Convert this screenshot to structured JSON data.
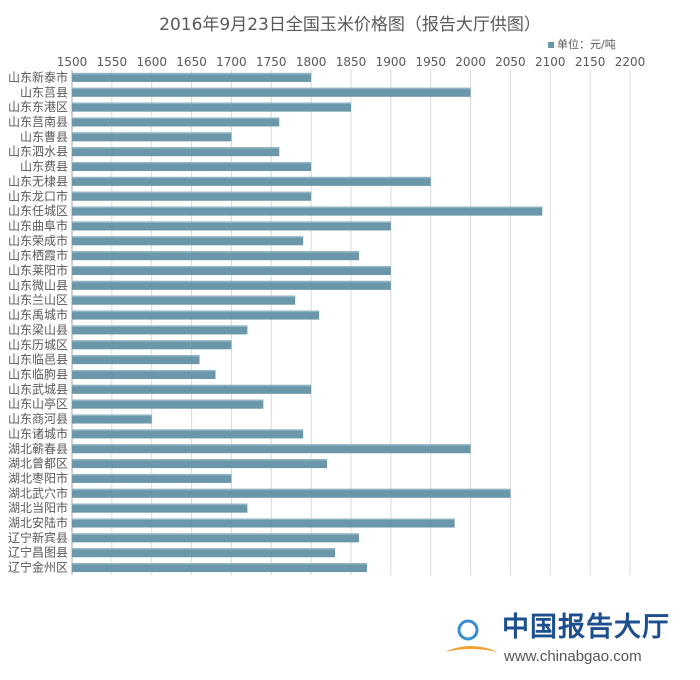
{
  "chart_data": {
    "type": "bar",
    "orientation": "horizontal",
    "title": "2016年9月23日全国玉米价格图（报告大厅供图）",
    "legend": {
      "label": "单位：元/吨",
      "position": "top-right"
    },
    "xlim": [
      1500,
      2200
    ],
    "xticks": [
      1500,
      1550,
      1600,
      1650,
      1700,
      1750,
      1800,
      1850,
      1900,
      1950,
      2000,
      2050,
      2100,
      2150,
      2200
    ],
    "xaxis_position": "top",
    "grid": true,
    "bar_color": "#6a97aa",
    "categories": [
      "山东新泰市",
      "山东莒县",
      "山东东港区",
      "山东莒南县",
      "山东曹县",
      "山东泗水县",
      "山东费县",
      "山东无棣县",
      "山东龙口市",
      "山东任城区",
      "山东曲阜市",
      "山东荣成市",
      "山东栖霞市",
      "山东莱阳市",
      "山东微山县",
      "山东兰山区",
      "山东禹城市",
      "山东梁山县",
      "山东历城区",
      "山东临邑县",
      "山东临朐县",
      "山东武城县",
      "山东山亭区",
      "山东商河县",
      "山东诸城市",
      "湖北蕲春县",
      "湖北曾都区",
      "湖北枣阳市",
      "湖北武穴市",
      "湖北当阳市",
      "湖北安陆市",
      "辽宁新宾县",
      "辽宁昌图县",
      "辽宁金州区"
    ],
    "values": [
      1800,
      2000,
      1850,
      1760,
      1700,
      1760,
      1800,
      1950,
      1800,
      2090,
      1900,
      1790,
      1860,
      1900,
      1900,
      1780,
      1810,
      1720,
      1700,
      1660,
      1680,
      1800,
      1740,
      1600,
      1790,
      2000,
      1820,
      1700,
      2050,
      1720,
      1980,
      1860,
      1830,
      1870
    ]
  },
  "watermark": {
    "name": "中国报告大厅",
    "url": "www.chinabgao.com"
  }
}
